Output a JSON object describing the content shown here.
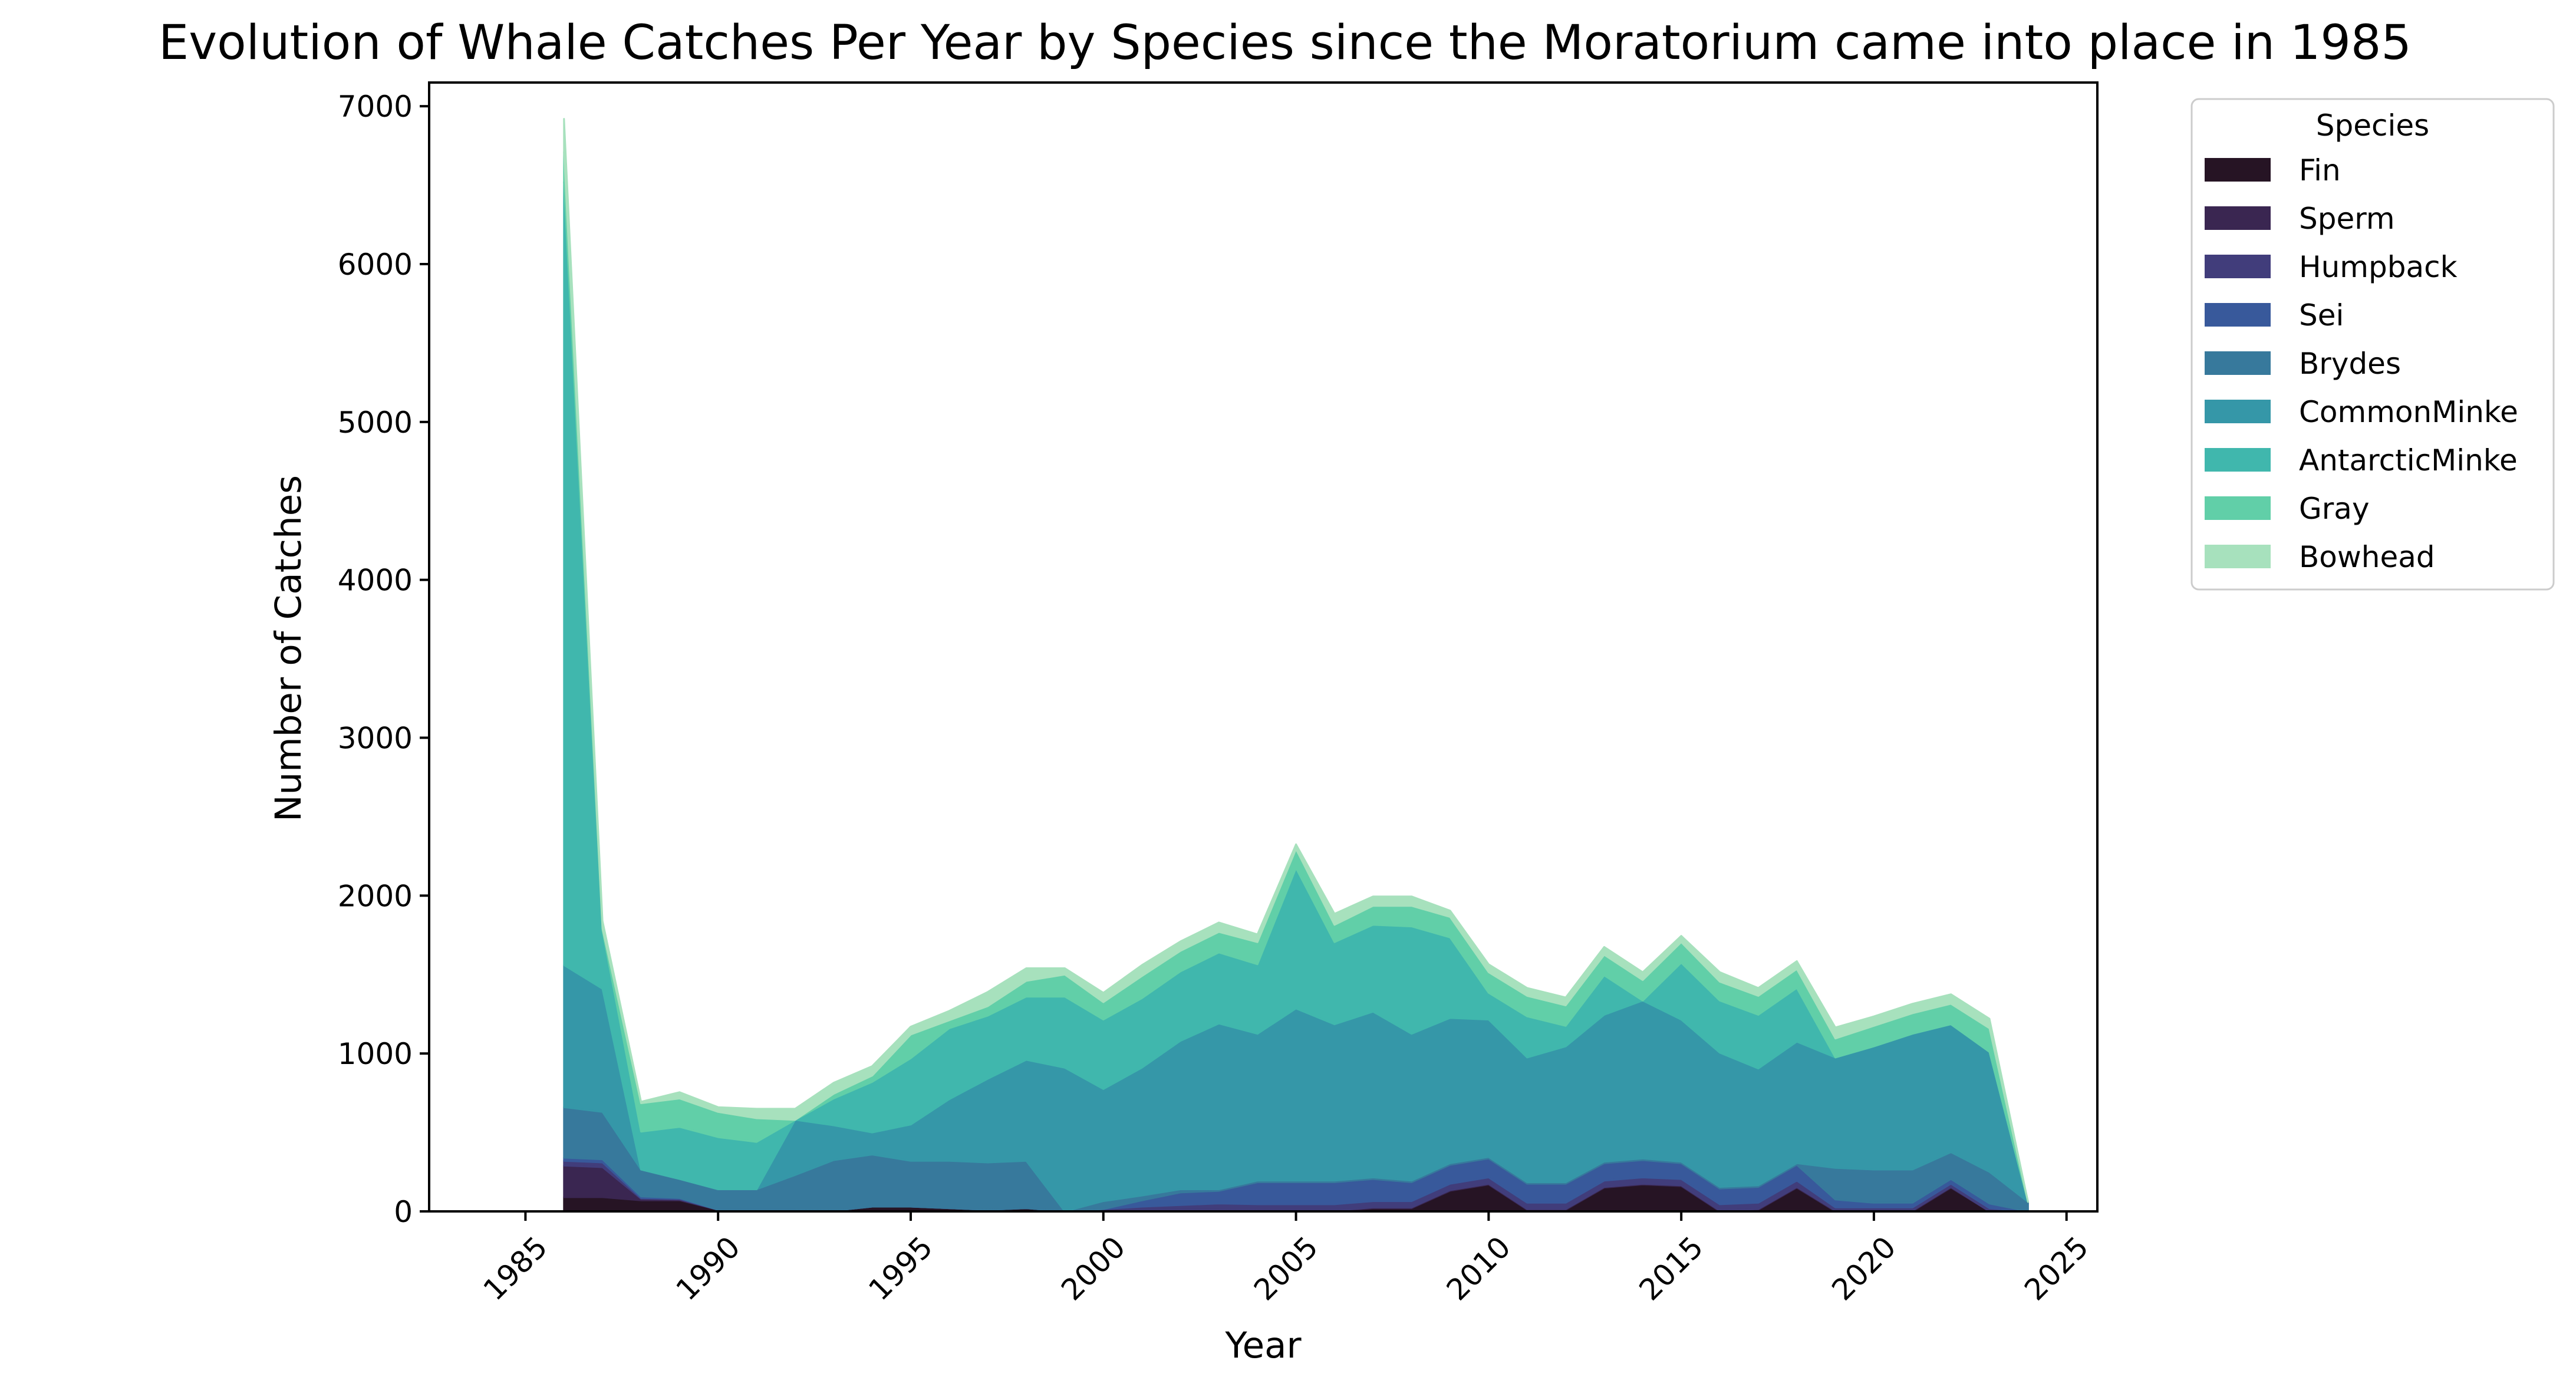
{
  "chart_data": {
    "type": "area",
    "stacked": true,
    "title": "Evolution of Whale Catches Per Year by Species since the Moratorium came into place in 1985",
    "xlabel": "Year",
    "ylabel": "Number of Catches",
    "xlim": [
      1982.5,
      2025.8
    ],
    "ylim": [
      0,
      7150
    ],
    "x_ticks": [
      1985,
      1990,
      1995,
      2000,
      2005,
      2010,
      2015,
      2020,
      2025
    ],
    "y_ticks": [
      0,
      1000,
      2000,
      3000,
      4000,
      5000,
      6000,
      7000
    ],
    "grid": false,
    "legend": {
      "title": "Species",
      "placement": "outside-upper-right"
    },
    "x": [
      1986,
      1987,
      1988,
      1989,
      1990,
      1991,
      1992,
      1993,
      1994,
      1995,
      1996,
      1997,
      1998,
      1999,
      2000,
      2001,
      2002,
      2003,
      2004,
      2005,
      2006,
      2007,
      2008,
      2009,
      2010,
      2011,
      2012,
      2013,
      2014,
      2015,
      2016,
      2017,
      2018,
      2019,
      2020,
      2021,
      2022,
      2023,
      2024
    ],
    "series": [
      {
        "name": "Fin",
        "color": "#261424",
        "values": [
          90,
          90,
          70,
          70,
          10,
          10,
          10,
          5,
          30,
          30,
          20,
          10,
          20,
          0,
          0,
          0,
          0,
          0,
          0,
          0,
          0,
          20,
          20,
          130,
          170,
          10,
          10,
          150,
          170,
          160,
          0,
          10,
          150,
          0,
          0,
          0,
          150,
          0,
          0
        ]
      },
      {
        "name": "Sperm",
        "color": "#3a2651",
        "values": [
          200,
          190,
          10,
          5,
          0,
          0,
          0,
          0,
          0,
          0,
          0,
          0,
          0,
          0,
          5,
          10,
          10,
          10,
          5,
          5,
          5,
          5,
          5,
          5,
          5,
          5,
          5,
          5,
          5,
          5,
          5,
          5,
          5,
          5,
          5,
          5,
          5,
          0,
          0
        ]
      },
      {
        "name": "Humpback",
        "color": "#413d7b",
        "values": [
          30,
          30,
          5,
          5,
          0,
          0,
          0,
          0,
          0,
          0,
          0,
          0,
          0,
          0,
          10,
          20,
          30,
          40,
          40,
          40,
          40,
          40,
          40,
          40,
          40,
          40,
          40,
          40,
          40,
          40,
          40,
          40,
          40,
          20,
          20,
          20,
          20,
          20,
          0
        ]
      },
      {
        "name": "Sei",
        "color": "#38599b",
        "values": [
          20,
          20,
          10,
          5,
          0,
          0,
          0,
          0,
          0,
          0,
          0,
          0,
          0,
          0,
          0,
          40,
          80,
          80,
          140,
          140,
          140,
          140,
          120,
          120,
          120,
          120,
          120,
          110,
          110,
          100,
          100,
          100,
          100,
          50,
          30,
          30,
          30,
          30,
          0
        ]
      },
      {
        "name": "Brydes",
        "color": "#37799c",
        "values": [
          320,
          300,
          170,
          120,
          130,
          130,
          220,
          320,
          330,
          290,
          300,
          300,
          300,
          0,
          50,
          30,
          20,
          10,
          10,
          10,
          10,
          10,
          10,
          10,
          10,
          10,
          10,
          10,
          10,
          10,
          10,
          10,
          10,
          200,
          210,
          210,
          170,
          200,
          60
        ]
      },
      {
        "name": "CommonMinke",
        "color": "#3597a8",
        "values": [
          900,
          780,
          0,
          0,
          0,
          0,
          350,
          220,
          140,
          230,
          390,
          530,
          640,
          910,
          710,
          810,
          940,
          1050,
          930,
          1090,
          990,
          1050,
          930,
          920,
          870,
          790,
          860,
          930,
          1000,
          900,
          850,
          740,
          770,
          700,
          780,
          860,
          810,
          760,
          0
        ]
      },
      {
        "name": "AntarcticMinke",
        "color": "#40b7ad",
        "values": [
          4960,
          370,
          240,
          330,
          330,
          300,
          0,
          170,
          320,
          420,
          450,
          400,
          400,
          450,
          440,
          440,
          440,
          450,
          440,
          890,
          520,
          550,
          680,
          510,
          170,
          260,
          130,
          250,
          0,
          360,
          330,
          340,
          340,
          0,
          0,
          0,
          0,
          0,
          0
        ]
      },
      {
        "name": "Gray",
        "color": "#61cfa8",
        "values": [
          190,
          10,
          180,
          180,
          160,
          150,
          0,
          30,
          40,
          150,
          50,
          60,
          100,
          140,
          110,
          140,
          130,
          130,
          140,
          120,
          110,
          120,
          130,
          130,
          130,
          130,
          130,
          130,
          130,
          130,
          120,
          120,
          120,
          120,
          130,
          130,
          130,
          150,
          0
        ]
      },
      {
        "name": "Bowhead",
        "color": "#a7e1bd",
        "values": [
          210,
          50,
          10,
          40,
          30,
          60,
          70,
          70,
          60,
          50,
          60,
          90,
          80,
          40,
          60,
          70,
          60,
          60,
          50,
          30,
          70,
          60,
          60,
          40,
          50,
          50,
          50,
          50,
          50,
          40,
          60,
          50,
          50,
          70,
          60,
          60,
          60,
          60,
          0
        ]
      }
    ]
  }
}
